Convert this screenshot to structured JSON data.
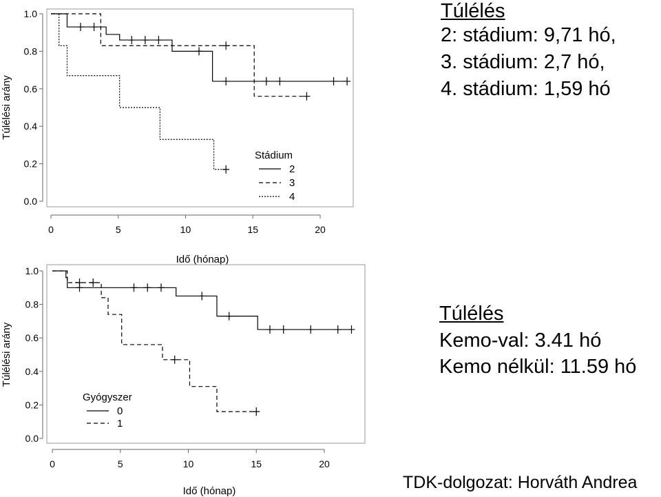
{
  "summary_top": {
    "heading": "Túlélés",
    "lines": [
      "2: stádium: 9,71 hó,",
      "3. stádium: 2,7 hó,",
      "4. stádium: 1,59 hó"
    ]
  },
  "summary_bottom": {
    "heading": "Túlélés",
    "lines": [
      "Kemo-val: 3.41 hó",
      "Kemo nélkül: 11.59 hó"
    ]
  },
  "footer": "TDK-dolgozat: Horváth Andrea",
  "chart_data": [
    {
      "type": "line",
      "subtype": "kaplan-meier",
      "xlabel": "Idő (hónap)",
      "ylabel": "Túlélési arány",
      "xlim": [
        0,
        23
      ],
      "ylim": [
        0,
        1
      ],
      "xticks": [
        "0",
        "5",
        "10",
        "15",
        "20"
      ],
      "yticks": [
        "0.0",
        "0.2",
        "0.4",
        "0.6",
        "0.8",
        "1.0"
      ],
      "legend_title": "Stádium",
      "legend_position": "bottom-right",
      "grid": false,
      "series": [
        {
          "name": "2",
          "dash": "solid",
          "steps": [
            [
              0,
              1.0
            ],
            [
              1.2,
              0.93
            ],
            [
              4.1,
              0.89
            ],
            [
              5.1,
              0.86
            ],
            [
              9,
              0.8
            ],
            [
              12,
              0.64
            ],
            [
              22,
              0.64
            ]
          ],
          "censored": [
            [
              2.2,
              0.93
            ],
            [
              3.2,
              0.93
            ],
            [
              6,
              0.86
            ],
            [
              7,
              0.86
            ],
            [
              8,
              0.86
            ],
            [
              11,
              0.8
            ],
            [
              13,
              0.64
            ],
            [
              16,
              0.64
            ],
            [
              17,
              0.64
            ],
            [
              21,
              0.64
            ],
            [
              22,
              0.64
            ]
          ]
        },
        {
          "name": "3",
          "dash": "dashed",
          "steps": [
            [
              0,
              1.0
            ],
            [
              3.7,
              0.83
            ],
            [
              15.1,
              0.56
            ],
            [
              19,
              0.56
            ]
          ],
          "censored": [
            [
              13,
              0.83
            ],
            [
              19,
              0.56
            ]
          ]
        },
        {
          "name": "4",
          "dash": "dotted",
          "steps": [
            [
              0,
              1.0
            ],
            [
              0.6,
              0.83
            ],
            [
              1.2,
              0.67
            ],
            [
              5.1,
              0.5
            ],
            [
              8.1,
              0.33
            ],
            [
              12.1,
              0.17
            ],
            [
              13,
              0.17
            ]
          ],
          "censored": [
            [
              13,
              0.17
            ]
          ]
        }
      ]
    },
    {
      "type": "line",
      "subtype": "kaplan-meier",
      "xlabel": "Idő (hónap)",
      "ylabel": "Túlélési arány",
      "xlim": [
        0,
        23
      ],
      "ylim": [
        0,
        1
      ],
      "xticks": [
        "0",
        "5",
        "10",
        "15",
        "20"
      ],
      "yticks": [
        "0.0",
        "0.2",
        "0.4",
        "0.6",
        "0.8",
        "1.0"
      ],
      "legend_title": "Gyógyszer",
      "legend_position": "bottom-left",
      "grid": false,
      "series": [
        {
          "name": "0",
          "dash": "solid",
          "steps": [
            [
              0,
              1.0
            ],
            [
              1.0,
              0.96
            ],
            [
              1.1,
              0.9
            ],
            [
              9.1,
              0.85
            ],
            [
              12.1,
              0.73
            ],
            [
              15.1,
              0.65
            ],
            [
              22,
              0.65
            ]
          ],
          "censored": [
            [
              2,
              0.9
            ],
            [
              6,
              0.9
            ],
            [
              7,
              0.9
            ],
            [
              8,
              0.9
            ],
            [
              11,
              0.85
            ],
            [
              13,
              0.73
            ],
            [
              16,
              0.65
            ],
            [
              17,
              0.65
            ],
            [
              19,
              0.65
            ],
            [
              21,
              0.65
            ],
            [
              22,
              0.65
            ]
          ]
        },
        {
          "name": "1",
          "dash": "dashed",
          "steps": [
            [
              0,
              1.0
            ],
            [
              1.1,
              0.93
            ],
            [
              3.6,
              0.84
            ],
            [
              4.1,
              0.74
            ],
            [
              5.1,
              0.56
            ],
            [
              8.1,
              0.47
            ],
            [
              10.1,
              0.31
            ],
            [
              12.1,
              0.16
            ],
            [
              15,
              0.16
            ]
          ],
          "censored": [
            [
              2,
              0.93
            ],
            [
              3,
              0.93
            ],
            [
              9,
              0.47
            ],
            [
              15,
              0.16
            ]
          ]
        }
      ]
    }
  ]
}
